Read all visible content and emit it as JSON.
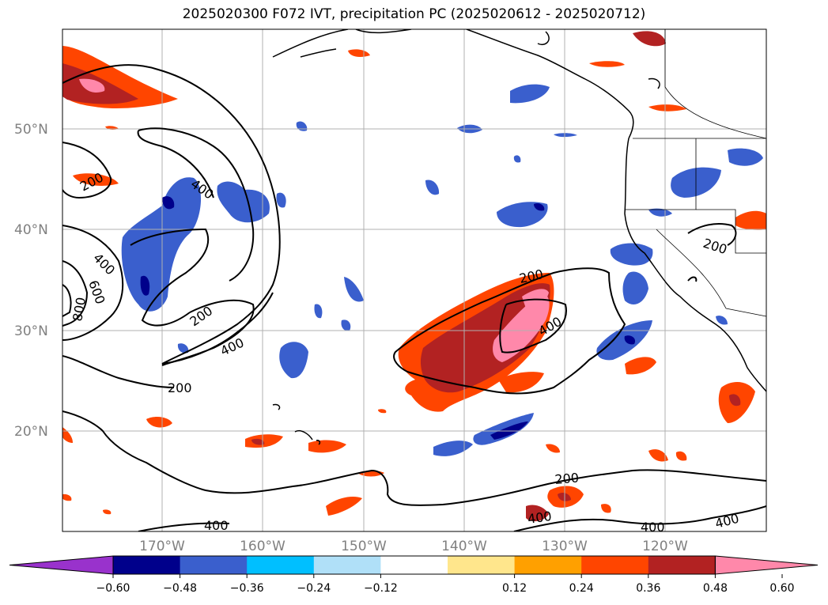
{
  "title": "2025020300 F072 IVT, precipitation PC (2025020612 - 2025020712)",
  "map": {
    "lat_labels": [
      "50°N",
      "40°N",
      "30°N",
      "20°N"
    ],
    "lat_values": [
      50,
      40,
      30,
      20
    ],
    "lon_labels": [
      "170°W",
      "160°W",
      "150°W",
      "140°W",
      "130°W",
      "120°W"
    ],
    "lon_values": [
      -170,
      -160,
      -150,
      -140,
      -130,
      -120
    ],
    "lon_range": [
      -180,
      -110
    ],
    "lat_range": [
      10,
      60
    ],
    "contour_labels": [
      "200",
      "400",
      "400",
      "600",
      "800",
      "200",
      "400",
      "200",
      "200",
      "400",
      "200",
      "200",
      "400",
      "400",
      "400",
      "400"
    ],
    "contour_levels": [
      200,
      400,
      600,
      800
    ]
  },
  "colorbar": {
    "ticks": [
      "−0.60",
      "−0.48",
      "−0.36",
      "−0.24",
      "−0.12",
      "0.12",
      "0.24",
      "0.36",
      "0.48",
      "0.60"
    ],
    "colors": [
      "#9932cc",
      "#00008b",
      "#3a5fcd",
      "#00bfff",
      "#b0e0f8",
      "#ffffff",
      "#ffe68c",
      "#ffa000",
      "#ff4500",
      "#b22222",
      "#ff88aa"
    ]
  }
}
